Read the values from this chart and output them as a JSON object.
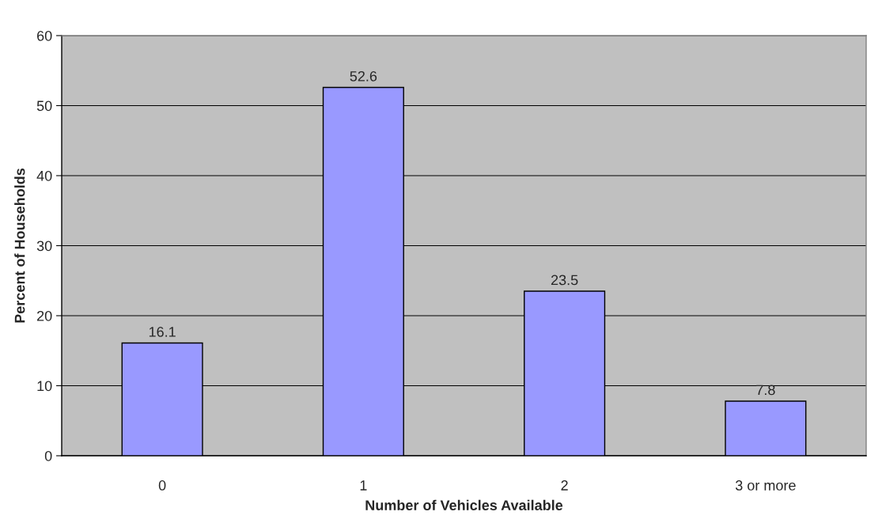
{
  "chart_data": {
    "type": "bar",
    "xlabel": "Number of Vehicles Available",
    "ylabel": "Percent of Households",
    "categories": [
      "0",
      "1",
      "2",
      "3 or more"
    ],
    "values": [
      16.1,
      52.6,
      23.5,
      7.8
    ],
    "color": "#9999ff",
    "ylim": [
      0,
      60
    ],
    "yticks": [
      0,
      10,
      20,
      30,
      40,
      50,
      60
    ],
    "grid": "y",
    "data_labels": true
  }
}
